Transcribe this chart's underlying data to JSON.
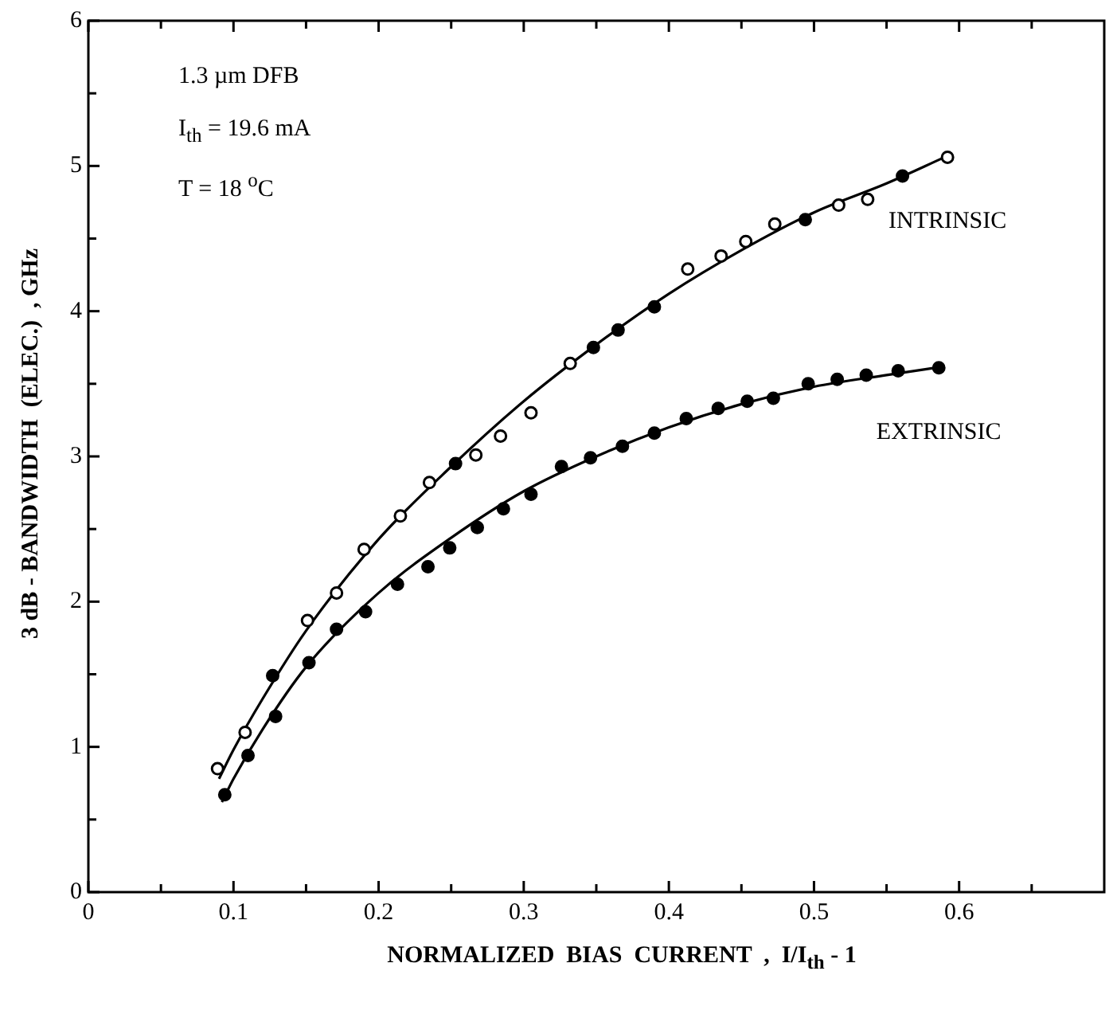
{
  "chart_data": {
    "type": "scatter",
    "xlabel": "NORMALIZED  BIAS  CURRENT  ,  I/I$_{th}$ - 1",
    "ylabel": "3 dB - BANDWIDTH  (ELEC.)  , GHz",
    "annotations": [
      "1.3 µm  DFB",
      "I$_{th}$ = 19.6 mA",
      "T = 18 $^{o}$C"
    ],
    "xlim": [
      0,
      0.7
    ],
    "ylim": [
      0,
      6
    ],
    "xticks": [
      0,
      {
        "value": 0.05,
        "label": null
      },
      0.1,
      {
        "value": 0.15,
        "label": null
      },
      0.2,
      {
        "value": 0.25,
        "label": null
      },
      0.3,
      {
        "value": 0.35,
        "label": null
      },
      0.4,
      {
        "value": 0.45,
        "label": null
      },
      0.5,
      {
        "value": 0.55,
        "label": null
      },
      0.6,
      {
        "value": 0.65,
        "label": null
      }
    ],
    "yticks": [
      0,
      {
        "value": 0.5,
        "label": null
      },
      1,
      {
        "value": 1.5,
        "label": null
      },
      2,
      {
        "value": 2.5,
        "label": null
      },
      3,
      {
        "value": 3.5,
        "label": null
      },
      4,
      {
        "value": 4.5,
        "label": null
      },
      5,
      {
        "value": 5.5,
        "label": null
      },
      6
    ],
    "grid": false,
    "legend": false,
    "marker": "circle",
    "series": [
      {
        "name": "INTRINSIC",
        "color": "#000000",
        "x": [
          0.089,
          0.108,
          0.127,
          0.151,
          0.171,
          0.19,
          0.215,
          0.235,
          0.253,
          0.267,
          0.284,
          0.305,
          0.332,
          0.348,
          0.365,
          0.39,
          0.413,
          0.436,
          0.453,
          0.473,
          0.494,
          0.517,
          0.537,
          0.561,
          0.592
        ],
        "values": [
          0.85,
          1.1,
          1.49,
          1.87,
          2.06,
          2.36,
          2.59,
          2.82,
          2.95,
          3.01,
          3.14,
          3.3,
          3.64,
          3.75,
          3.87,
          4.03,
          4.29,
          4.38,
          4.48,
          4.6,
          4.63,
          4.73,
          4.77,
          4.93,
          5.06
        ],
        "colors": [
          "#ffffff",
          "#ffffff",
          "#000000",
          "#ffffff",
          "#ffffff",
          "#ffffff",
          "#ffffff",
          "#ffffff",
          "#000000",
          "#ffffff",
          "#ffffff",
          "#ffffff",
          "#ffffff",
          "#000000",
          "#000000",
          "#000000",
          "#ffffff",
          "#ffffff",
          "#ffffff",
          "#ffffff",
          "#000000",
          "#ffffff",
          "#ffffff",
          "#000000",
          "#ffffff"
        ]
      },
      {
        "name": "EXTRINSIC",
        "color": "#000000",
        "x": [
          0.094,
          0.11,
          0.129,
          0.152,
          0.171,
          0.191,
          0.213,
          0.234,
          0.249,
          0.268,
          0.286,
          0.305,
          0.326,
          0.346,
          0.368,
          0.39,
          0.412,
          0.434,
          0.454,
          0.472,
          0.496,
          0.516,
          0.536,
          0.558,
          0.586
        ],
        "values": [
          0.67,
          0.94,
          1.21,
          1.58,
          1.81,
          1.93,
          2.12,
          2.24,
          2.37,
          2.51,
          2.64,
          2.74,
          2.93,
          2.99,
          3.07,
          3.16,
          3.26,
          3.33,
          3.38,
          3.4,
          3.5,
          3.53,
          3.56,
          3.59,
          3.61
        ]
      },
      {
        "type": "line",
        "marker": "none",
        "color": "#000000",
        "line_style": "solid",
        "x": [
          0.09,
          0.1,
          0.12,
          0.15,
          0.2,
          0.25,
          0.3,
          0.35,
          0.4,
          0.45,
          0.5,
          0.55,
          0.59
        ],
        "values": [
          0.78,
          0.98,
          1.33,
          1.8,
          2.43,
          2.93,
          3.38,
          3.77,
          4.12,
          4.42,
          4.68,
          4.88,
          5.06
        ]
      },
      {
        "type": "line",
        "marker": "none",
        "color": "#000000",
        "line_style": "solid",
        "x": [
          0.092,
          0.1,
          0.12,
          0.15,
          0.2,
          0.25,
          0.3,
          0.35,
          0.4,
          0.45,
          0.5,
          0.55,
          0.59
        ],
        "values": [
          0.62,
          0.78,
          1.12,
          1.55,
          2.06,
          2.44,
          2.76,
          3.0,
          3.2,
          3.36,
          3.48,
          3.56,
          3.62
        ]
      }
    ]
  }
}
